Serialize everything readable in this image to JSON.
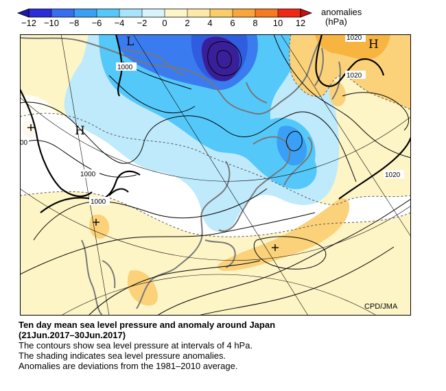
{
  "legend": {
    "title_line1": "anomalies",
    "title_line2": "(hPa)",
    "ticks": [
      "−12",
      "−10",
      "−8",
      "−6",
      "−4",
      "−2",
      "0",
      "2",
      "4",
      "6",
      "8",
      "10",
      "12"
    ],
    "colors": [
      "#2b2bd9",
      "#3a6ef0",
      "#3aa0f5",
      "#55c8fa",
      "#a8e4fb",
      "#d8f3fc",
      "#fdf6c8",
      "#fce8a8",
      "#fbcc6a",
      "#f8a63c",
      "#f57a22",
      "#ef2a14"
    ]
  },
  "map": {
    "credit": "CPD/JMA",
    "contour_labels": [
      "1000",
      "1000",
      "1000",
      "00",
      "1020",
      "1020",
      "1020"
    ],
    "centers": [
      "L",
      "H",
      "H"
    ],
    "anomaly_colors": {
      "strong_negative": "#3a1f9a",
      "negative_4": "#3a7cf0",
      "negative_2": "#55c8fa",
      "negative_1": "#bfeafc",
      "positive_1": "#fdf5c6",
      "positive_2": "#fbd27a",
      "positive_3": "#f8b440",
      "coast": "#777777"
    }
  },
  "caption": {
    "title": "Ten day mean sea level pressure and anomaly around Japan",
    "period": "(21Jun.2017–30Jun.2017)",
    "line1": "The contours show sea level pressure at intervals of 4 hPa.",
    "line2": "The shading indicates sea level pressure anomalies.",
    "line3": "Anomalies are deviations from the 1981–2010 average."
  }
}
